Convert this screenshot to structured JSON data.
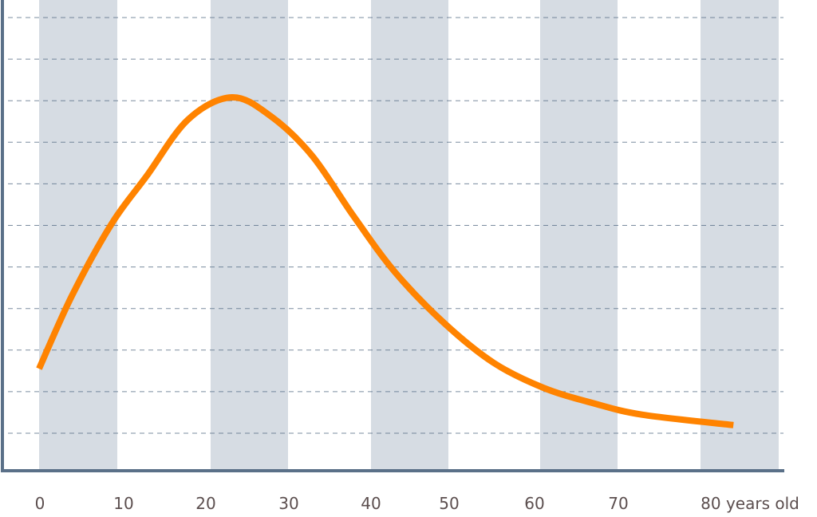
{
  "chart_data": {
    "type": "line",
    "title": "",
    "xlabel": "years old",
    "ylabel": "",
    "x_tick_labels": [
      "0",
      "10",
      "20",
      "30",
      "40",
      "50",
      "60",
      "70",
      "80 years old"
    ],
    "xlim": [
      0,
      90
    ],
    "ylim": [
      0,
      11.3
    ],
    "grid": "horizontal dashed",
    "series": [
      {
        "name": "curve",
        "color": "#ff8300",
        "x": [
          0,
          4,
          8.8,
          13,
          18,
          23.3,
          28,
          33,
          38,
          43,
          49,
          55,
          61,
          67,
          73,
          84
        ],
        "y": [
          2.46,
          4.23,
          5.96,
          7.1,
          8.46,
          9.0,
          8.55,
          7.6,
          6.15,
          4.8,
          3.56,
          2.6,
          2.0,
          1.63,
          1.35,
          1.1
        ]
      }
    ],
    "colors": {
      "band": "#d6dce3",
      "axis": "#5a7088",
      "grid": "#5a7088",
      "text": "#5b4e4e"
    }
  }
}
